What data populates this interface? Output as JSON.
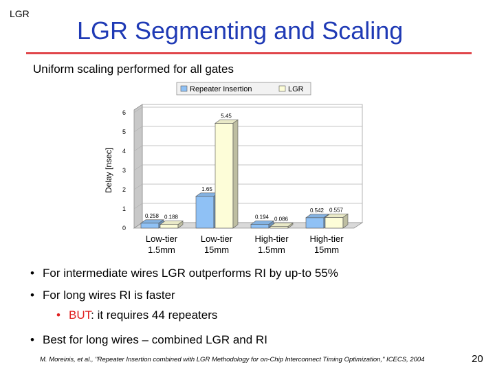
{
  "header": {
    "corner_label": "LGR",
    "title": "LGR Segmenting and Scaling",
    "subtitle": "Uniform scaling performed for all gates"
  },
  "colors": {
    "title": "#1f3ab5",
    "rule": "#e0464b",
    "ri": "#8fc1f5",
    "lgr": "#fdfdd8"
  },
  "chart_data": {
    "type": "bar",
    "title": "",
    "xlabel": "",
    "ylabel": "Delay [nsec]",
    "ylim": [
      0,
      6
    ],
    "yticks": [
      "0",
      "1",
      "2",
      "3",
      "4",
      "5",
      "6"
    ],
    "grid": true,
    "legend_position": "top",
    "categories": [
      [
        "Low-tier",
        "1.5mm"
      ],
      [
        "Low-tier",
        "15mm"
      ],
      [
        "High-tier",
        "1.5mm"
      ],
      [
        "High-tier",
        "15mm"
      ]
    ],
    "series": [
      {
        "name": "Repeater Insertion",
        "values": [
          0.258,
          1.65,
          0.194,
          0.542
        ],
        "labels": [
          "0.258",
          "1.65",
          "0.194",
          "0.542"
        ]
      },
      {
        "name": "LGR",
        "values": [
          0.188,
          5.45,
          0.086,
          0.557
        ],
        "labels": [
          "0.188",
          "5.45",
          "0.086",
          "0.557"
        ]
      }
    ]
  },
  "bullets": {
    "b1": "For intermediate wires LGR outperforms RI by up-to 55%",
    "b2": "For long wires RI is faster",
    "b3_prefix": "BUT",
    "b3_rest": ": it requires 44 repeaters",
    "b4": "Best for long wires – combined LGR and RI",
    "marker": "•"
  },
  "footer": {
    "citation": "M. Moreinis, et al., \"Repeater Insertion combined with LGR Methodology for on-Chip Interconnect Timing Optimization,\" ICECS, 2004",
    "page_number": "20"
  }
}
